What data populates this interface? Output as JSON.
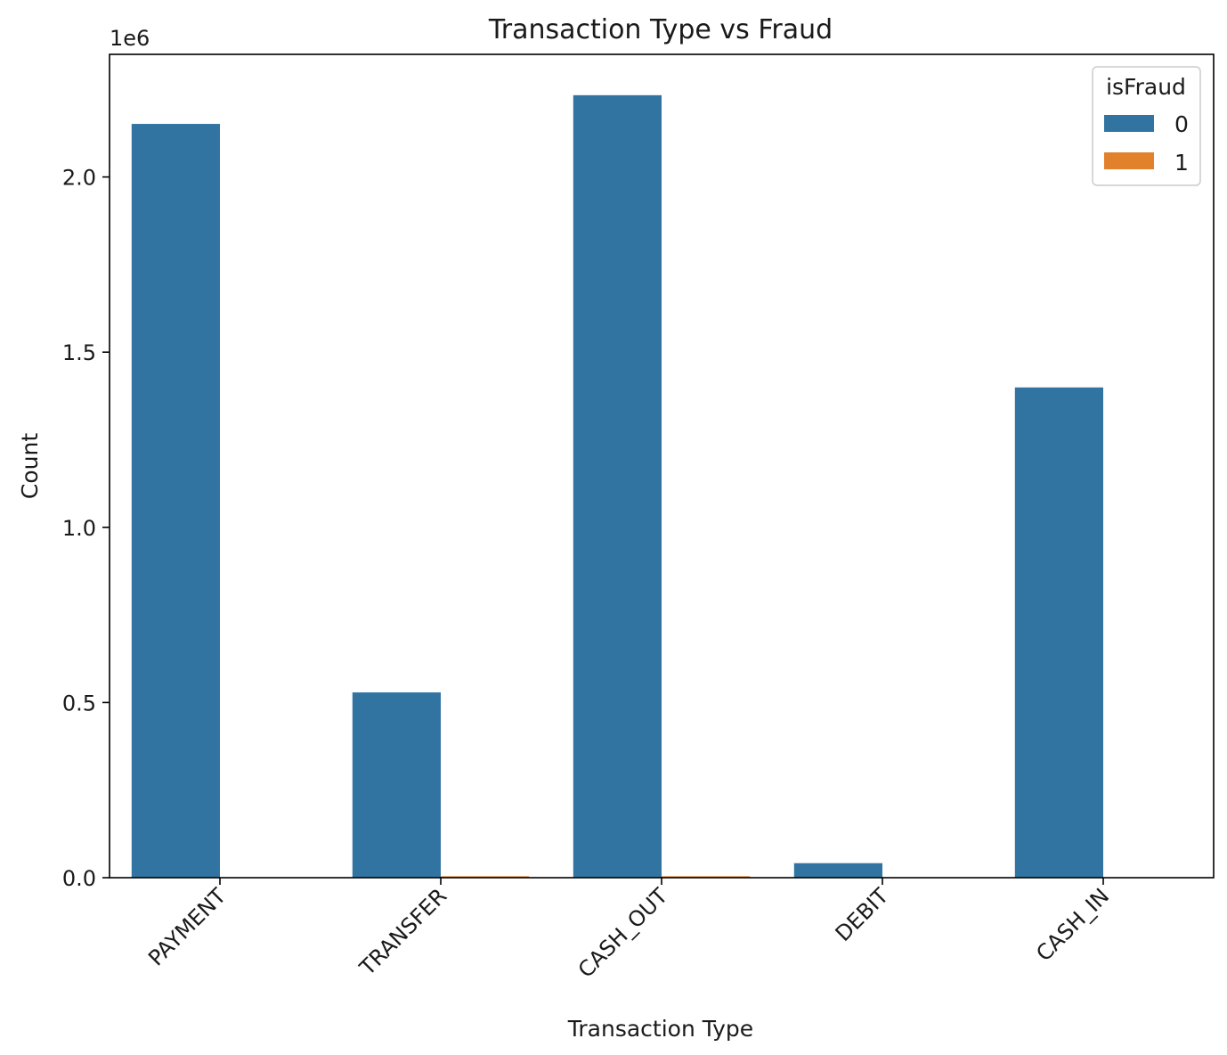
{
  "chart_data": {
    "type": "bar",
    "title": "Transaction Type vs Fraud",
    "xlabel": "Transaction Type",
    "ylabel": "Count",
    "y_offset_label": "1e6",
    "categories": [
      "PAYMENT",
      "TRANSFER",
      "CASH_OUT",
      "DEBIT",
      "CASH_IN"
    ],
    "series": [
      {
        "name": "0",
        "color": "#3274a1",
        "values": [
          2151495,
          528812,
          2233384,
          41432,
          1399284
        ]
      },
      {
        "name": "1",
        "color": "#e1812c",
        "values": [
          0,
          4097,
          4116,
          0,
          0
        ]
      }
    ],
    "legend": {
      "title": "isFraud",
      "position": "top-right"
    },
    "ylim": [
      0,
      2350000
    ],
    "yticks": [
      0,
      500000,
      1000000,
      1500000,
      2000000
    ],
    "ytick_labels": [
      "0.0",
      "0.5",
      "1.0",
      "1.5",
      "2.0"
    ],
    "grid": false
  }
}
